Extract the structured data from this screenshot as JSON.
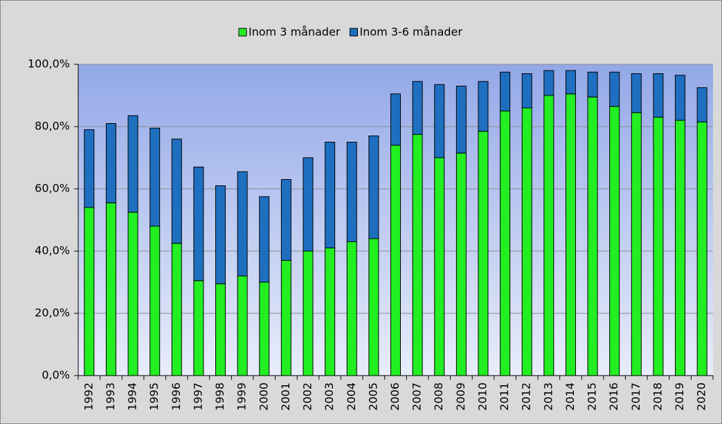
{
  "chart_data": {
    "type": "stacked_bar",
    "categories": [
      "1992",
      "1993",
      "1994",
      "1995",
      "1996",
      "1997",
      "1998",
      "1999",
      "2000",
      "2001",
      "2002",
      "2003",
      "2004",
      "2005",
      "2006",
      "2007",
      "2008",
      "2009",
      "2010",
      "2011",
      "2012",
      "2013",
      "2014",
      "2015",
      "2016",
      "2017",
      "2018",
      "2019",
      "2020"
    ],
    "series": [
      {
        "name": "Inom 3 månader",
        "color": "#22ee22",
        "values": [
          54,
          55.5,
          52.5,
          48,
          42.5,
          30.5,
          29.5,
          32,
          30,
          37,
          40,
          41,
          43,
          44,
          74,
          77.5,
          70,
          71.5,
          78.5,
          85,
          86,
          90,
          90.5,
          89.5,
          86.5,
          84.5,
          83,
          82,
          81.5
        ]
      },
      {
        "name": "Inom 3-6 månader",
        "color": "#1f6fc0",
        "values": [
          25,
          25.5,
          31,
          31.5,
          33.5,
          36.5,
          31.5,
          33.5,
          27.5,
          26,
          30,
          34,
          32,
          33,
          16.5,
          17,
          23.5,
          21.5,
          16,
          12.5,
          11,
          8,
          7.5,
          8,
          11,
          12.5,
          14,
          14.5,
          11
        ]
      }
    ],
    "ylim": [
      0,
      100
    ],
    "yticks": [
      {
        "value": 0,
        "label": "0,0%"
      },
      {
        "value": 20,
        "label": "20,0%"
      },
      {
        "value": 40,
        "label": "40,0%"
      },
      {
        "value": 60,
        "label": "60,0%"
      },
      {
        "value": 80,
        "label": "80,0%"
      },
      {
        "value": 100,
        "label": "100,0%"
      }
    ],
    "grid": true,
    "legend": "top"
  }
}
